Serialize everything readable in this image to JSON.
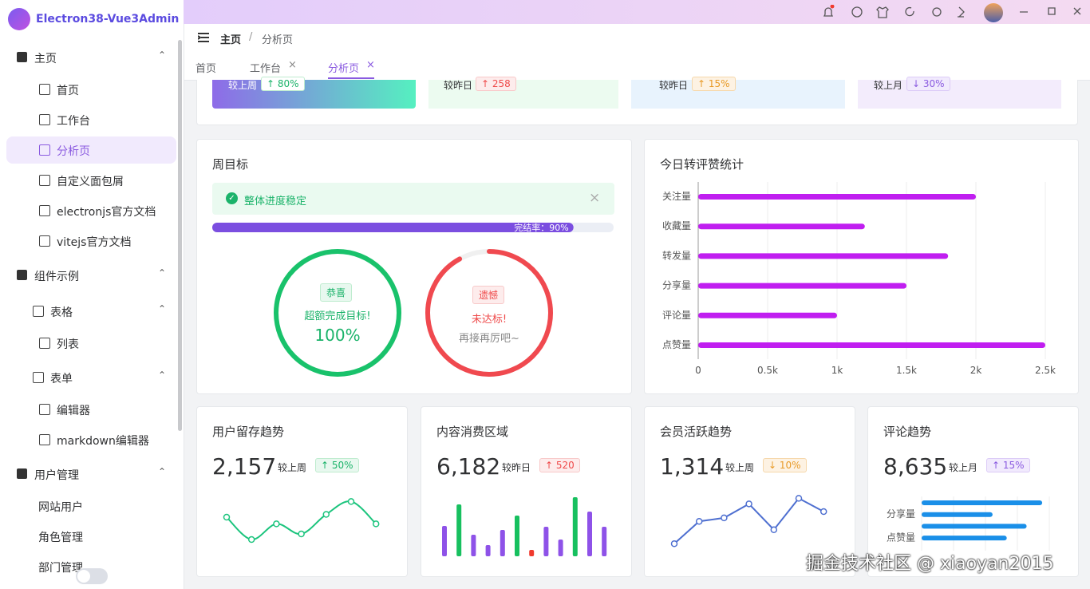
{
  "sidebar": {
    "logo": "Electron38-Vue3Admin",
    "menu": [
      "主页",
      "首页",
      "工作台",
      "分析页",
      "自定义面包屑",
      "electronjs官方文档",
      "vitejs官方文档",
      "组件示例",
      "表格",
      "列表",
      "表单",
      "编辑器",
      "markdown编辑器",
      "用户管理",
      "网站用户",
      "角色管理",
      "部门管理"
    ]
  },
  "breadcrumb": [
    "主页",
    "分析页"
  ],
  "tabs": [
    "首页",
    "工作台",
    "分析页"
  ],
  "summary": [
    {
      "label": "较上周",
      "change": "80%"
    },
    {
      "label": "较昨日",
      "change": "258"
    },
    {
      "label": "较昨日",
      "change": "15%"
    },
    {
      "label": "较上月",
      "change": "30%"
    }
  ],
  "goal": {
    "title": "周目标",
    "alert": "整体进度稳定",
    "progress": {
      "value": 90,
      "label": "完结率：90%"
    },
    "success": {
      "tag": "恭喜",
      "text": "超额完成目标!",
      "value": 100,
      "value_label": "100%"
    },
    "fail": {
      "tag": "遗憾",
      "text": "未达标!",
      "hint": "再接再厉吧~",
      "value": 92
    }
  },
  "interactions": {
    "type": "bar",
    "title": "今日转评赞统计",
    "categories": [
      "关注量",
      "收藏量",
      "转发量",
      "分享量",
      "评论量",
      "点赞量"
    ],
    "values": [
      2000,
      1200,
      1800,
      1500,
      1000,
      2500
    ],
    "color": "#c01ef0",
    "xlim": [
      0,
      2500
    ],
    "xticks": [
      0,
      {
        "value": 500,
        "label": "0.5k"
      },
      {
        "value": 1000,
        "label": "1k"
      },
      {
        "value": 1500,
        "label": "1.5k"
      },
      {
        "value": 2000,
        "label": "2k"
      },
      {
        "value": 2500,
        "label": "2.5k"
      }
    ],
    "grid": true
  },
  "cards": [
    {
      "title": "用户留存趋势",
      "value": "2,157",
      "compare": "较上周",
      "change": "50%",
      "chart": {
        "type": "line",
        "values": [
          60,
          20,
          48,
          30,
          65,
          88,
          48
        ],
        "color": "#1bc47d",
        "ylim": [
          0,
          100
        ]
      }
    },
    {
      "title": "内容消费区域",
      "value": "6,182",
      "compare": "较昨日",
      "change": "520",
      "chart": {
        "type": "bar",
        "values": [
          38,
          65,
          27,
          14,
          33,
          51,
          8,
          37,
          21,
          74,
          56,
          37
        ],
        "colors": [
          "#8e52e8",
          "#17c05f",
          "#8e52e8",
          "#8e52e8",
          "#8e52e8",
          "#17c05f",
          "#f03a2e",
          "#8e52e8",
          "#8e52e8",
          "#17c05f",
          "#8e52e8",
          "#8e52e8"
        ],
        "ylim": [
          0,
          80
        ]
      }
    },
    {
      "title": "会员活跃趋势",
      "value": "1,314",
      "compare": "较上周",
      "change": "10%",
      "chart": {
        "type": "line",
        "values": [
          10,
          42,
          47,
          67,
          30,
          75,
          56
        ],
        "color": "#4e6fd0",
        "ylim": [
          0,
          80
        ]
      }
    },
    {
      "title": "评论趋势",
      "value": "8,635",
      "compare": "较上月",
      "change": "15%",
      "chart": {
        "type": "hbar",
        "categories": [
          null,
          "分享量",
          null,
          "点赞量"
        ],
        "values": [
          1700,
          1000,
          1480,
          1200
        ],
        "color": "#1a8fe8",
        "xlim": [
          0,
          1800
        ]
      }
    }
  ],
  "watermark": "掘金技术社区 @ xiaoyan2015"
}
